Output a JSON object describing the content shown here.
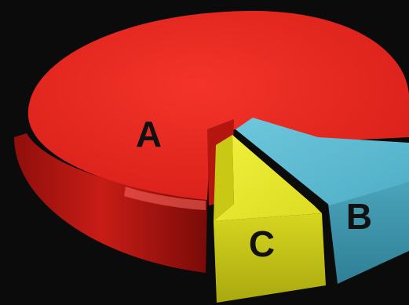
{
  "chart_data": {
    "type": "pie",
    "categories": [
      "A",
      "B",
      "C"
    ],
    "values": [
      80,
      11,
      9
    ],
    "colors": [
      "#e8261f",
      "#5ab8d0",
      "#e6e52a"
    ],
    "style": "3d-exploded",
    "legend": "none",
    "labels": [
      "A",
      "B",
      "C"
    ]
  }
}
